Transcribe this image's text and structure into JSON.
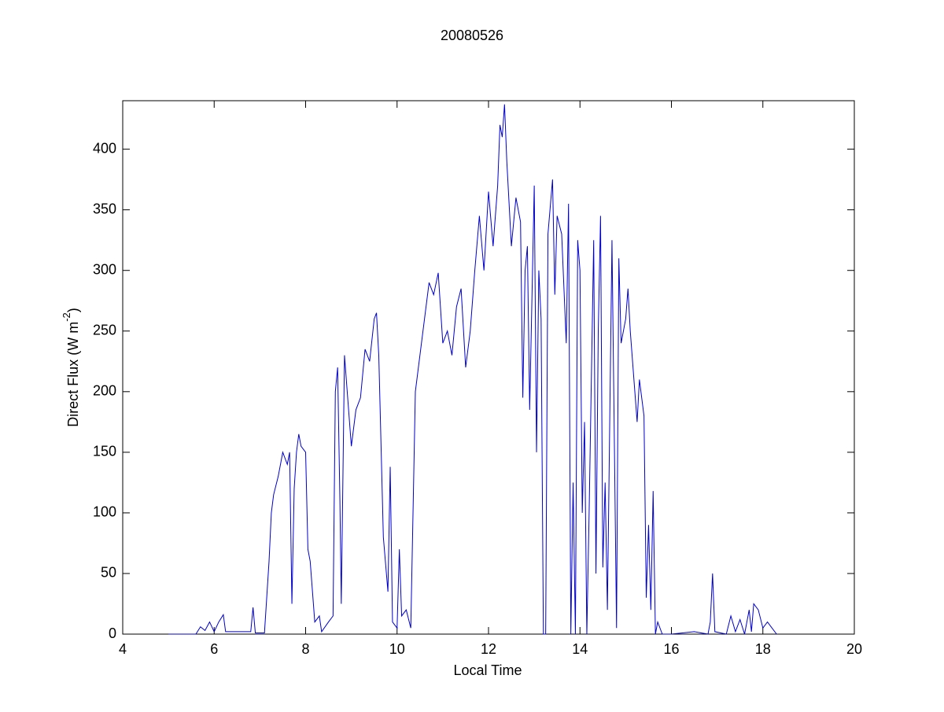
{
  "chart_data": {
    "type": "line",
    "title": "20080526",
    "x_label": "Local Time",
    "y_label_parts": [
      "Direct Flux (W m",
      "-2",
      ")"
    ],
    "xlim": [
      4,
      20
    ],
    "xticks": [
      4,
      6,
      8,
      10,
      12,
      14,
      16,
      18,
      20
    ],
    "ylim": [
      0,
      440
    ],
    "yticks": [
      0,
      50,
      100,
      150,
      200,
      250,
      300,
      350,
      400
    ],
    "grid": false,
    "series": [
      {
        "color": "#0000cc",
        "x": [
          5.0,
          5.3,
          5.6,
          5.7,
          5.8,
          5.9,
          6.0,
          6.1,
          6.2,
          6.25,
          6.5,
          6.8,
          6.85,
          6.9,
          7.1,
          7.2,
          7.25,
          7.3,
          7.4,
          7.5,
          7.6,
          7.65,
          7.7,
          7.75,
          7.8,
          7.85,
          7.9,
          8.0,
          8.05,
          8.1,
          8.2,
          8.3,
          8.35,
          8.5,
          8.6,
          8.65,
          8.7,
          8.75,
          8.78,
          8.85,
          8.9,
          9.0,
          9.1,
          9.2,
          9.3,
          9.4,
          9.5,
          9.55,
          9.6,
          9.7,
          9.8,
          9.85,
          9.9,
          10.0,
          10.05,
          10.1,
          10.2,
          10.3,
          10.4,
          10.5,
          10.6,
          10.7,
          10.8,
          10.9,
          11.0,
          11.1,
          11.2,
          11.3,
          11.4,
          11.5,
          11.6,
          11.7,
          11.8,
          11.9,
          12.0,
          12.1,
          12.2,
          12.25,
          12.3,
          12.35,
          12.4,
          12.5,
          12.6,
          12.7,
          12.75,
          12.8,
          12.85,
          12.9,
          13.0,
          13.05,
          13.1,
          13.15,
          13.2,
          13.25,
          13.3,
          13.4,
          13.45,
          13.5,
          13.6,
          13.7,
          13.75,
          13.8,
          13.85,
          13.9,
          13.95,
          14.0,
          14.05,
          14.1,
          14.15,
          14.2,
          14.3,
          14.35,
          14.4,
          14.45,
          14.5,
          14.55,
          14.6,
          14.7,
          14.8,
          14.85,
          14.9,
          15.0,
          15.05,
          15.1,
          15.2,
          15.25,
          15.3,
          15.4,
          15.45,
          15.5,
          15.55,
          15.6,
          15.65,
          15.7,
          15.8,
          16.0,
          16.5,
          16.8,
          16.85,
          16.9,
          16.95,
          17.2,
          17.3,
          17.4,
          17.5,
          17.6,
          17.7,
          17.75,
          17.8,
          17.9,
          18.0,
          18.1,
          18.2,
          18.3
        ],
        "values": [
          0,
          0,
          0,
          6,
          3,
          10,
          2,
          10,
          16,
          2,
          2,
          2,
          22,
          1,
          1,
          60,
          100,
          115,
          130,
          150,
          140,
          150,
          25,
          120,
          150,
          165,
          155,
          150,
          70,
          60,
          10,
          15,
          2,
          10,
          15,
          200,
          220,
          110,
          25,
          230,
          205,
          155,
          185,
          195,
          235,
          225,
          260,
          265,
          230,
          80,
          35,
          138,
          10,
          5,
          70,
          15,
          20,
          5,
          200,
          230,
          260,
          290,
          280,
          298,
          240,
          250,
          230,
          270,
          285,
          220,
          250,
          300,
          345,
          300,
          365,
          320,
          370,
          420,
          410,
          437,
          390,
          320,
          360,
          340,
          195,
          300,
          320,
          185,
          370,
          150,
          300,
          260,
          0,
          0,
          330,
          375,
          280,
          345,
          330,
          240,
          355,
          0,
          125,
          0,
          325,
          300,
          100,
          175,
          0,
          100,
          325,
          50,
          250,
          345,
          55,
          125,
          20,
          325,
          5,
          310,
          240,
          260,
          285,
          250,
          200,
          175,
          210,
          180,
          30,
          90,
          20,
          118,
          0,
          10,
          0,
          0,
          2,
          0,
          10,
          50,
          2,
          0,
          15,
          2,
          12,
          0,
          20,
          2,
          25,
          20,
          5,
          10,
          5,
          0
        ]
      }
    ]
  }
}
